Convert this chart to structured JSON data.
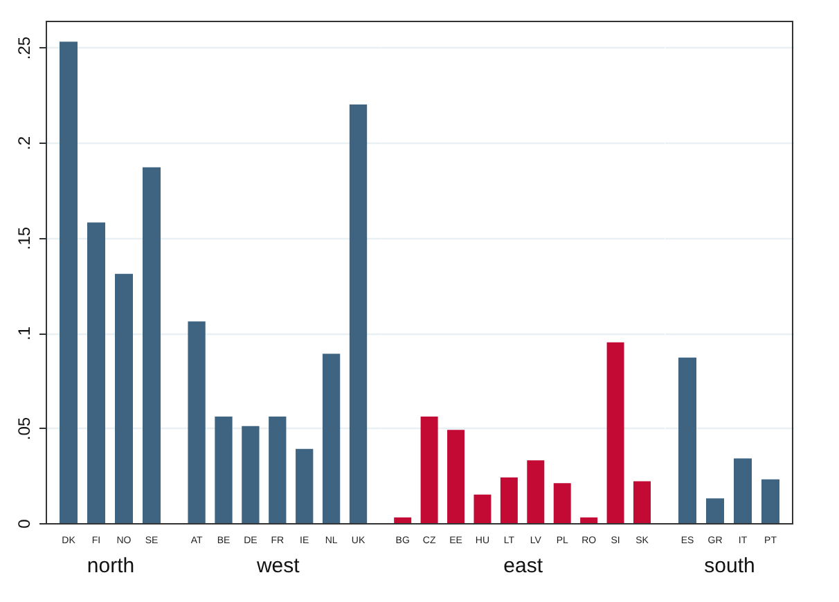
{
  "chart_data": [
    {
      "type": "bar",
      "xlabel": "north",
      "categories": [
        "DK",
        "FI",
        "NO",
        "SE"
      ],
      "values": [
        0.253,
        0.158,
        0.131,
        0.187
      ],
      "colors": [
        "#3e6481",
        "#3e6481",
        "#3e6481",
        "#3e6481"
      ],
      "ylim": [
        0,
        0.264
      ],
      "yticks": [
        0,
        {
          "value": 0.05,
          "label": ".05"
        },
        {
          "value": 0.1,
          "label": ".1"
        },
        {
          "value": 0.15,
          "label": ".15"
        },
        {
          "value": 0.2,
          "label": ".2"
        },
        {
          "value": 0.25,
          "label": ".25"
        }
      ],
      "grid": "y"
    },
    {
      "type": "bar",
      "xlabel": "west",
      "categories": [
        "AT",
        "BE",
        "DE",
        "FR",
        "IE",
        "NL",
        "UK"
      ],
      "values": [
        0.106,
        0.056,
        0.051,
        0.056,
        0.039,
        0.089,
        0.22
      ],
      "colors": [
        "#3e6481",
        "#3e6481",
        "#3e6481",
        "#3e6481",
        "#3e6481",
        "#3e6481",
        "#3e6481"
      ],
      "ylim": [
        0,
        0.264
      ],
      "yticks": [
        {
          "value": 0,
          "label": null
        },
        {
          "value": 0.05,
          "label": null
        },
        {
          "value": 0.1,
          "label": null
        },
        {
          "value": 0.15,
          "label": null
        },
        {
          "value": 0.2,
          "label": null
        },
        {
          "value": 0.25,
          "label": null
        }
      ],
      "grid": "y",
      "tick_labels": "x"
    },
    {
      "type": "bar",
      "xlabel": "east",
      "categories": [
        "BG",
        "CZ",
        "EE",
        "HU",
        "LT",
        "LV",
        "PL",
        "RO",
        "SI",
        "SK"
      ],
      "values": [
        0.003,
        0.056,
        0.049,
        0.015,
        0.024,
        0.033,
        0.021,
        0.003,
        0.095,
        0.022
      ],
      "colors": [
        "#c20a35",
        "#c20a35",
        "#c20a35",
        "#c20a35",
        "#c20a35",
        "#c20a35",
        "#c20a35",
        "#c20a35",
        "#c20a35",
        "#c20a35"
      ],
      "ylim": [
        0,
        0.264
      ],
      "yticks": [
        {
          "value": 0,
          "label": null
        },
        {
          "value": 0.05,
          "label": null
        },
        {
          "value": 0.1,
          "label": null
        },
        {
          "value": 0.15,
          "label": null
        },
        {
          "value": 0.2,
          "label": null
        },
        {
          "value": 0.25,
          "label": null
        }
      ],
      "grid": "y",
      "tick_labels": "x"
    },
    {
      "type": "bar",
      "xlabel": "south",
      "categories": [
        "ES",
        "GR",
        "IT",
        "PT"
      ],
      "values": [
        0.087,
        0.013,
        0.034,
        0.023
      ],
      "colors": [
        "#3e6481",
        "#3e6481",
        "#3e6481",
        "#3e6481"
      ],
      "ylim": [
        0,
        0.264
      ],
      "yticks": [
        {
          "value": 0,
          "label": null
        },
        {
          "value": 0.05,
          "label": null
        },
        {
          "value": 0.1,
          "label": null
        },
        {
          "value": 0.15,
          "label": null
        },
        {
          "value": 0.2,
          "label": null
        },
        {
          "value": 0.25,
          "label": null
        }
      ],
      "grid": "y",
      "tick_labels": "x"
    }
  ]
}
